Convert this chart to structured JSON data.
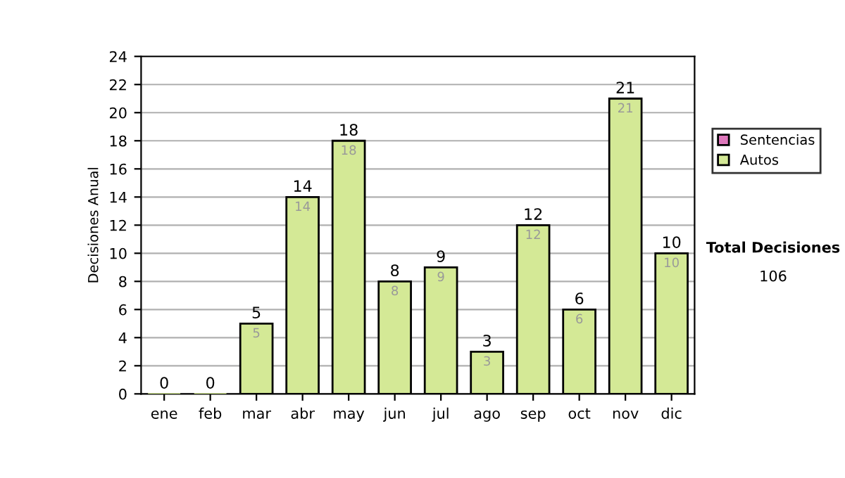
{
  "chart_data": {
    "type": "bar",
    "ylabel": "Decisiones Anual",
    "categories": [
      "ene",
      "feb",
      "mar",
      "abr",
      "may",
      "jun",
      "jul",
      "ago",
      "sep",
      "oct",
      "nov",
      "dic"
    ],
    "series": [
      {
        "name": "Sentencias",
        "color": "#dd77bb",
        "values": [
          null,
          null,
          null,
          null,
          null,
          null,
          null,
          null,
          null,
          null,
          null,
          null
        ]
      },
      {
        "name": "Autos",
        "color": "#d4e996",
        "values": [
          0,
          0,
          5,
          14,
          18,
          8,
          9,
          3,
          12,
          6,
          21,
          10
        ],
        "value_labels": [
          null,
          null,
          "5",
          "14",
          "18",
          "8",
          "9",
          "3",
          "12",
          "6",
          "21",
          "10"
        ]
      }
    ],
    "stacked": true,
    "totals": [
      "0",
      "0",
      "5",
      "14",
      "18",
      "8",
      "9",
      "3",
      "12",
      "6",
      "21",
      "10"
    ],
    "ylim": [
      0,
      24
    ],
    "yticks": [
      0,
      2,
      4,
      6,
      8,
      10,
      12,
      14,
      16,
      18,
      20,
      22,
      24
    ],
    "grid": "y",
    "legend": "right",
    "annotations": [
      "Total Decisiones",
      "106"
    ]
  }
}
